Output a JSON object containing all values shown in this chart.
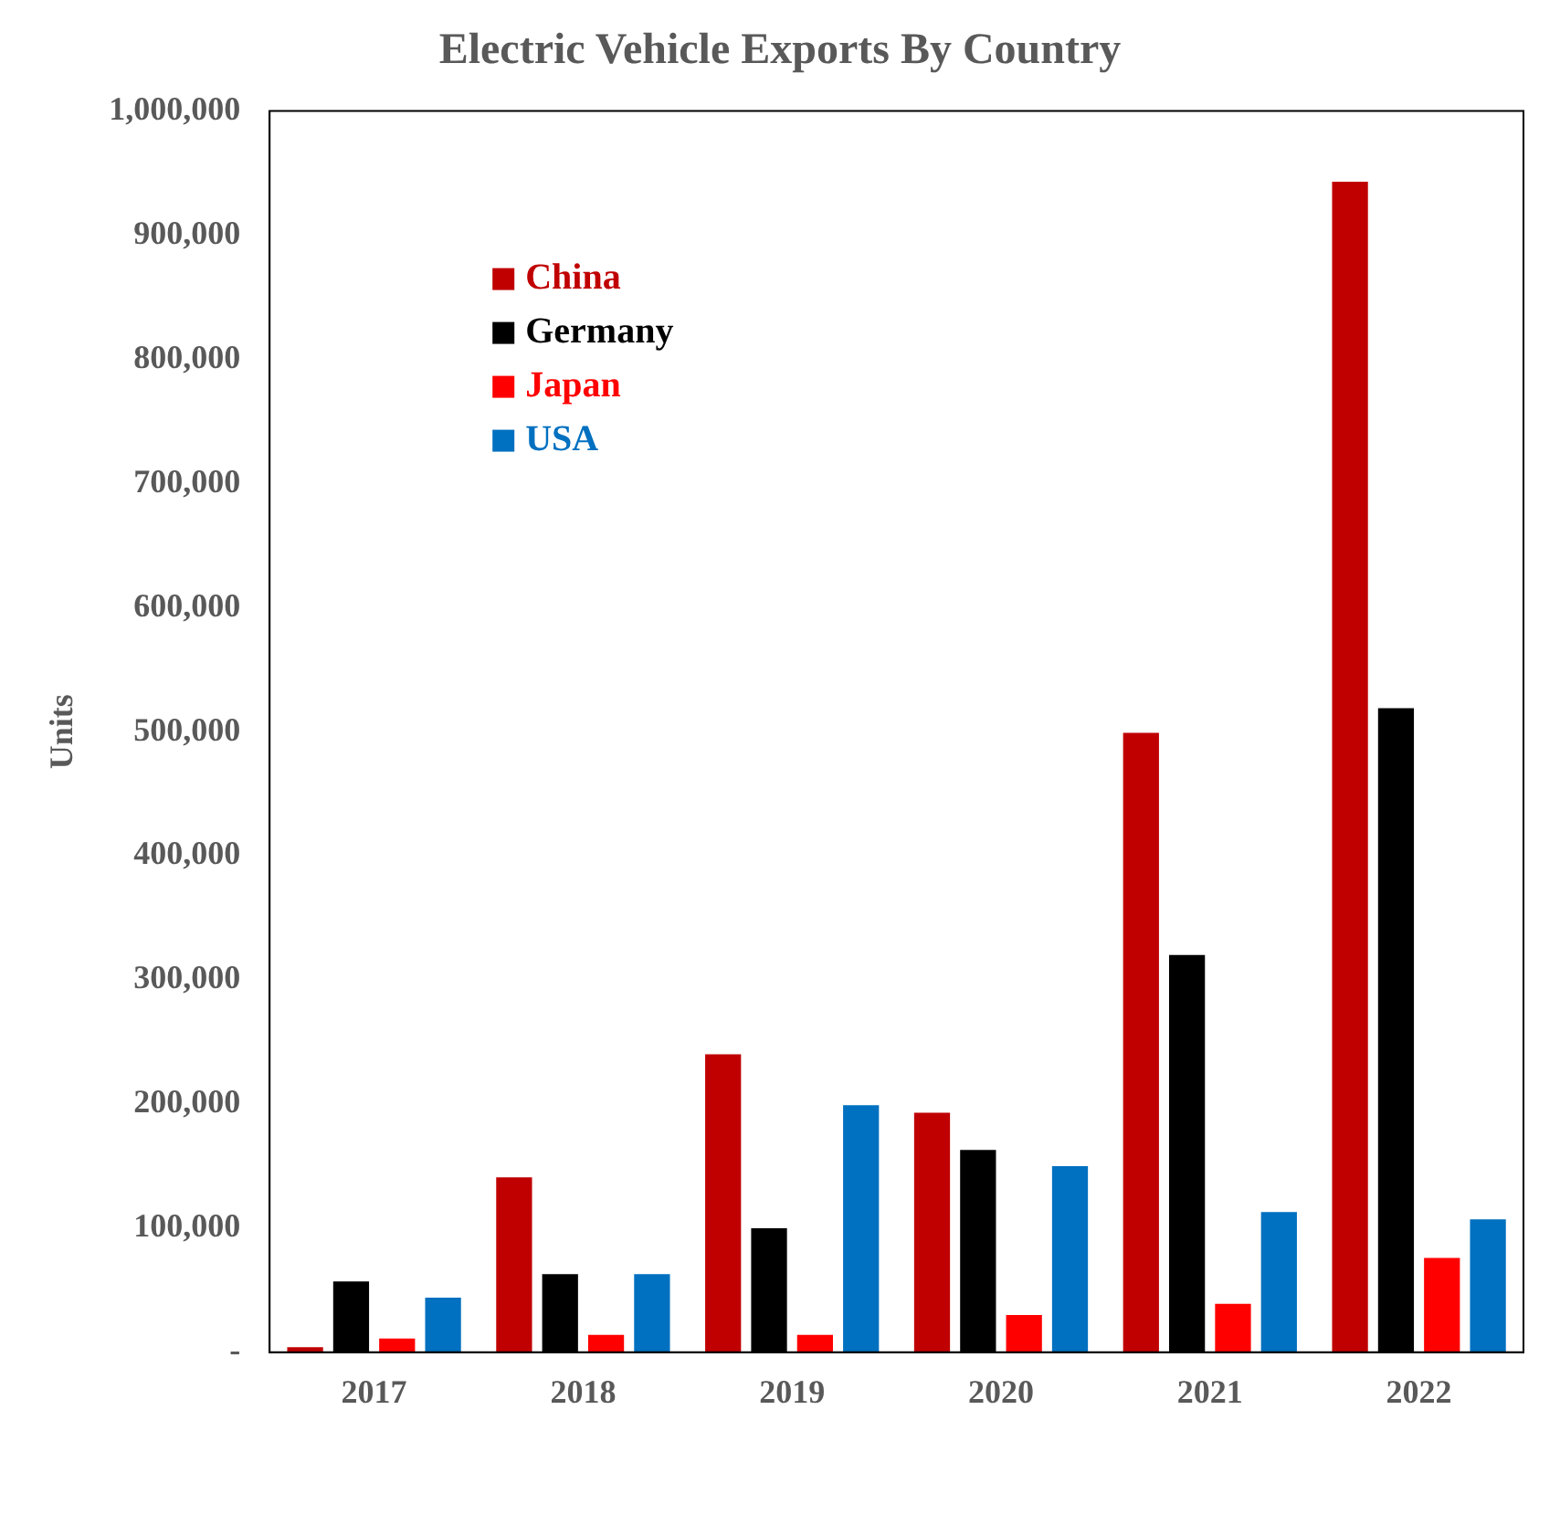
{
  "chart_data": {
    "type": "bar",
    "title": "Electric Vehicle Exports By Country",
    "ylabel": "Units",
    "categories": [
      "2017",
      "2018",
      "2019",
      "2020",
      "2021",
      "2022"
    ],
    "series": [
      {
        "name": "China",
        "color": "#c00000",
        "values": [
          4000,
          141000,
          240000,
          193000,
          499000,
          943000
        ]
      },
      {
        "name": "Germany",
        "color": "#000000",
        "values": [
          57000,
          63000,
          100000,
          163000,
          320000,
          519000
        ]
      },
      {
        "name": "Japan",
        "color": "#ff0000",
        "values": [
          11000,
          14000,
          14000,
          30000,
          39000,
          76000
        ]
      },
      {
        "name": "USA",
        "color": "#0070c0",
        "values": [
          44000,
          63000,
          199000,
          150000,
          113000,
          107000
        ]
      }
    ],
    "ylim": [
      0,
      1000000
    ],
    "yticks": [
      {
        "value": 0,
        "label": "-"
      },
      {
        "value": 100000,
        "label": "100,000"
      },
      {
        "value": 200000,
        "label": "200,000"
      },
      {
        "value": 300000,
        "label": "300,000"
      },
      {
        "value": 400000,
        "label": "400,000"
      },
      {
        "value": 500000,
        "label": "500,000"
      },
      {
        "value": 600000,
        "label": "600,000"
      },
      {
        "value": 700000,
        "label": "700,000"
      },
      {
        "value": 800000,
        "label": "800,000"
      },
      {
        "value": 900000,
        "label": "900,000"
      },
      {
        "value": 1000000,
        "label": "1,000,000"
      }
    ],
    "grid": false,
    "legend": "top left"
  }
}
